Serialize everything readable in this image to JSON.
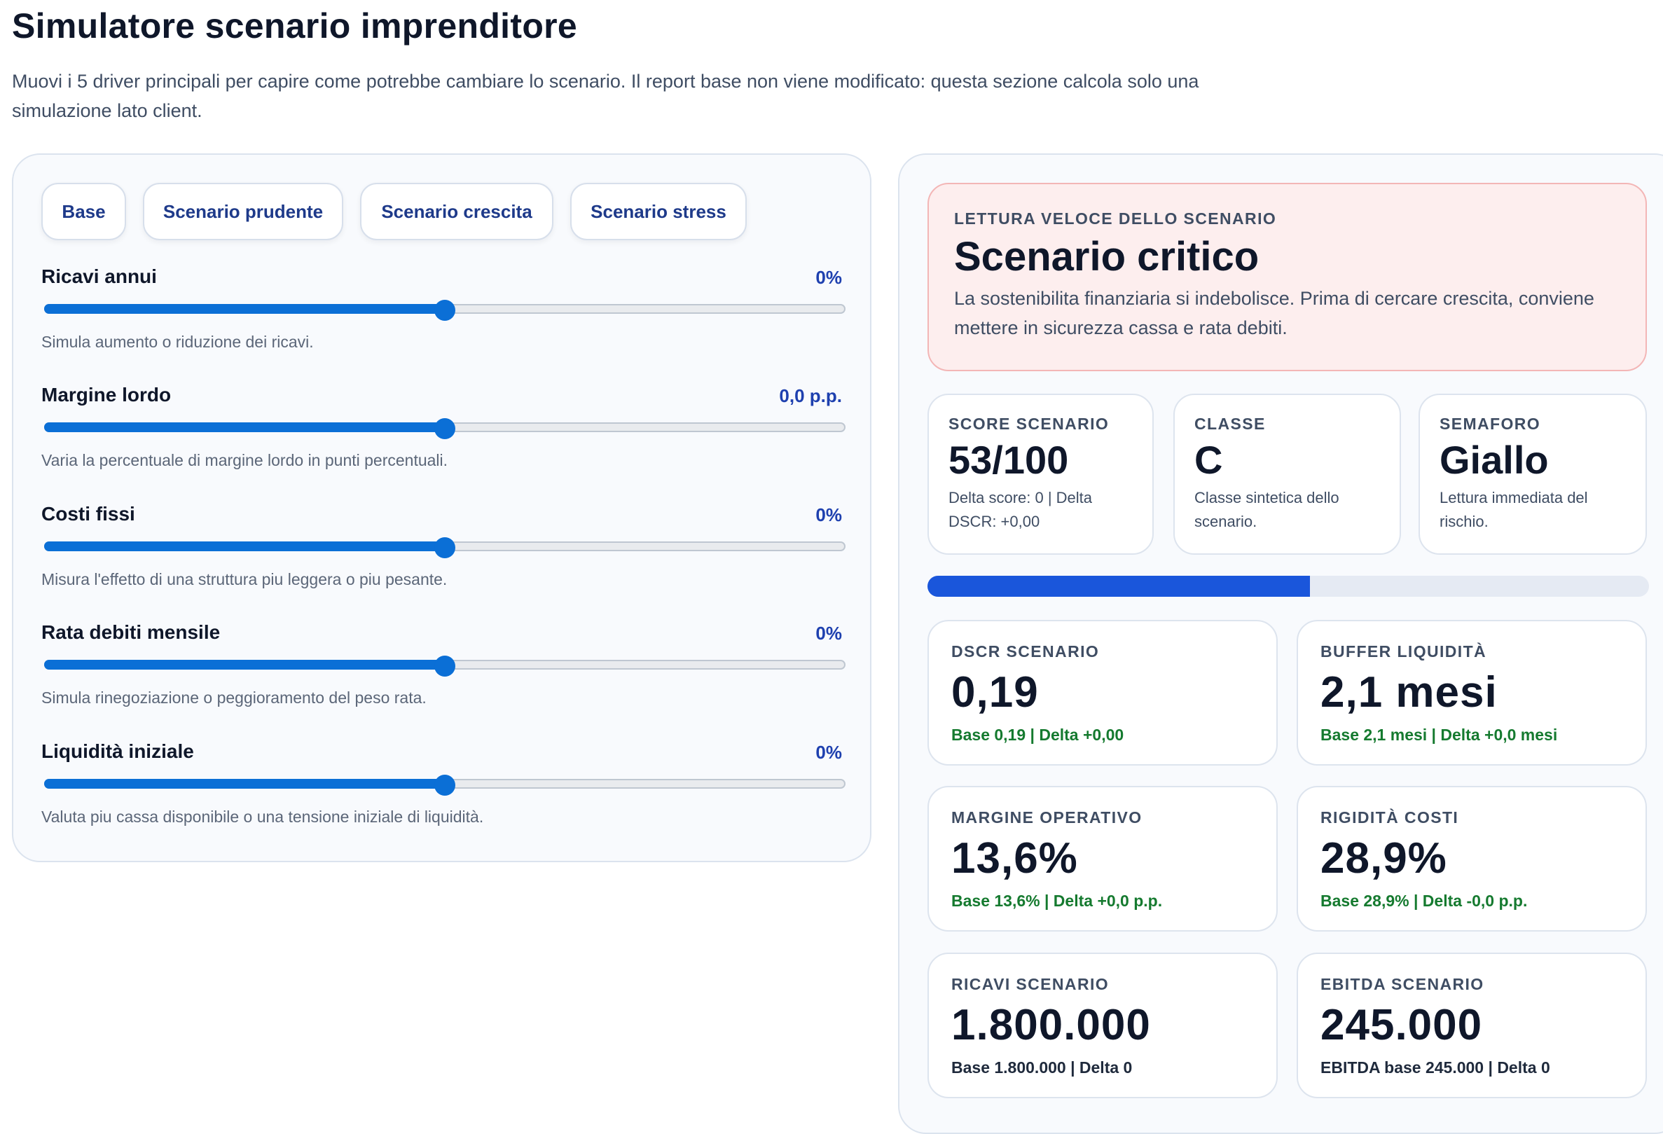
{
  "header": {
    "title": "Simulatore scenario imprenditore",
    "intro": "Muovi i 5 driver principali per capire come potrebbe cambiare lo scenario. Il report base non viene modificato: questa sezione calcola solo una simulazione lato client."
  },
  "presets": [
    "Base",
    "Scenario prudente",
    "Scenario crescita",
    "Scenario stress"
  ],
  "sliders": [
    {
      "label": "Ricavi annui",
      "value_text": "0%",
      "help": "Simula aumento o riduzione dei ricavi.",
      "level": 0.5
    },
    {
      "label": "Margine lordo",
      "value_text": "0,0 p.p.",
      "help": "Varia la percentuale di margine lordo in punti percentuali.",
      "level": 0.5
    },
    {
      "label": "Costi fissi",
      "value_text": "0%",
      "help": "Misura l'effetto di una struttura piu leggera o piu pesante.",
      "level": 0.5
    },
    {
      "label": "Rata debiti mensile",
      "value_text": "0%",
      "help": "Simula rinegoziazione o peggioramento del peso rata.",
      "level": 0.5
    },
    {
      "label": "Liquidità iniziale",
      "value_text": "0%",
      "help": "Valuta piu cassa disponibile o una tensione iniziale di liquidità.",
      "level": 0.5
    }
  ],
  "summary": {
    "eyebrow": "LETTURA VELOCE DELLO SCENARIO",
    "title": "Scenario critico",
    "text": "La sostenibilita finanziaria si indebolisce. Prima di cercare crescita, conviene mettere in sicurezza cassa e rata debiti."
  },
  "kpis": [
    {
      "label": "SCORE SCENARIO",
      "value": "53/100",
      "sub": "Delta score: 0 | Delta DSCR: +0,00"
    },
    {
      "label": "CLASSE",
      "value": "C",
      "sub": "Classe sintetica dello scenario."
    },
    {
      "label": "SEMAFORO",
      "value": "Giallo",
      "sub": "Lettura immediata del rischio."
    }
  ],
  "score_progress": 0.53,
  "metrics": [
    {
      "label": "DSCR SCENARIO",
      "value": "0,19",
      "sub": "Base 0,19 | Delta +0,00"
    },
    {
      "label": "BUFFER LIQUIDITÀ",
      "value": "2,1 mesi",
      "sub": "Base 2,1 mesi | Delta +0,0 mesi"
    },
    {
      "label": "MARGINE OPERATIVO",
      "value": "13,6%",
      "sub": "Base 13,6% | Delta +0,0 p.p."
    },
    {
      "label": "RIGIDITÀ COSTI",
      "value": "28,9%",
      "sub": "Base 28,9% | Delta -0,0 p.p."
    },
    {
      "label": "RICAVI SCENARIO",
      "value": "1.800.000",
      "sub": "Base 1.800.000 | Delta 0"
    },
    {
      "label": "EBITDA SCENARIO",
      "value": "245.000",
      "sub": "EBITDA base 245.000 | Delta 0"
    }
  ],
  "colors": {
    "accent": "#0b6fd6",
    "progress": "#1a56db",
    "positive": "#157a2f",
    "alert_bg": "#fdeeee",
    "alert_border": "#f3b6b6"
  }
}
